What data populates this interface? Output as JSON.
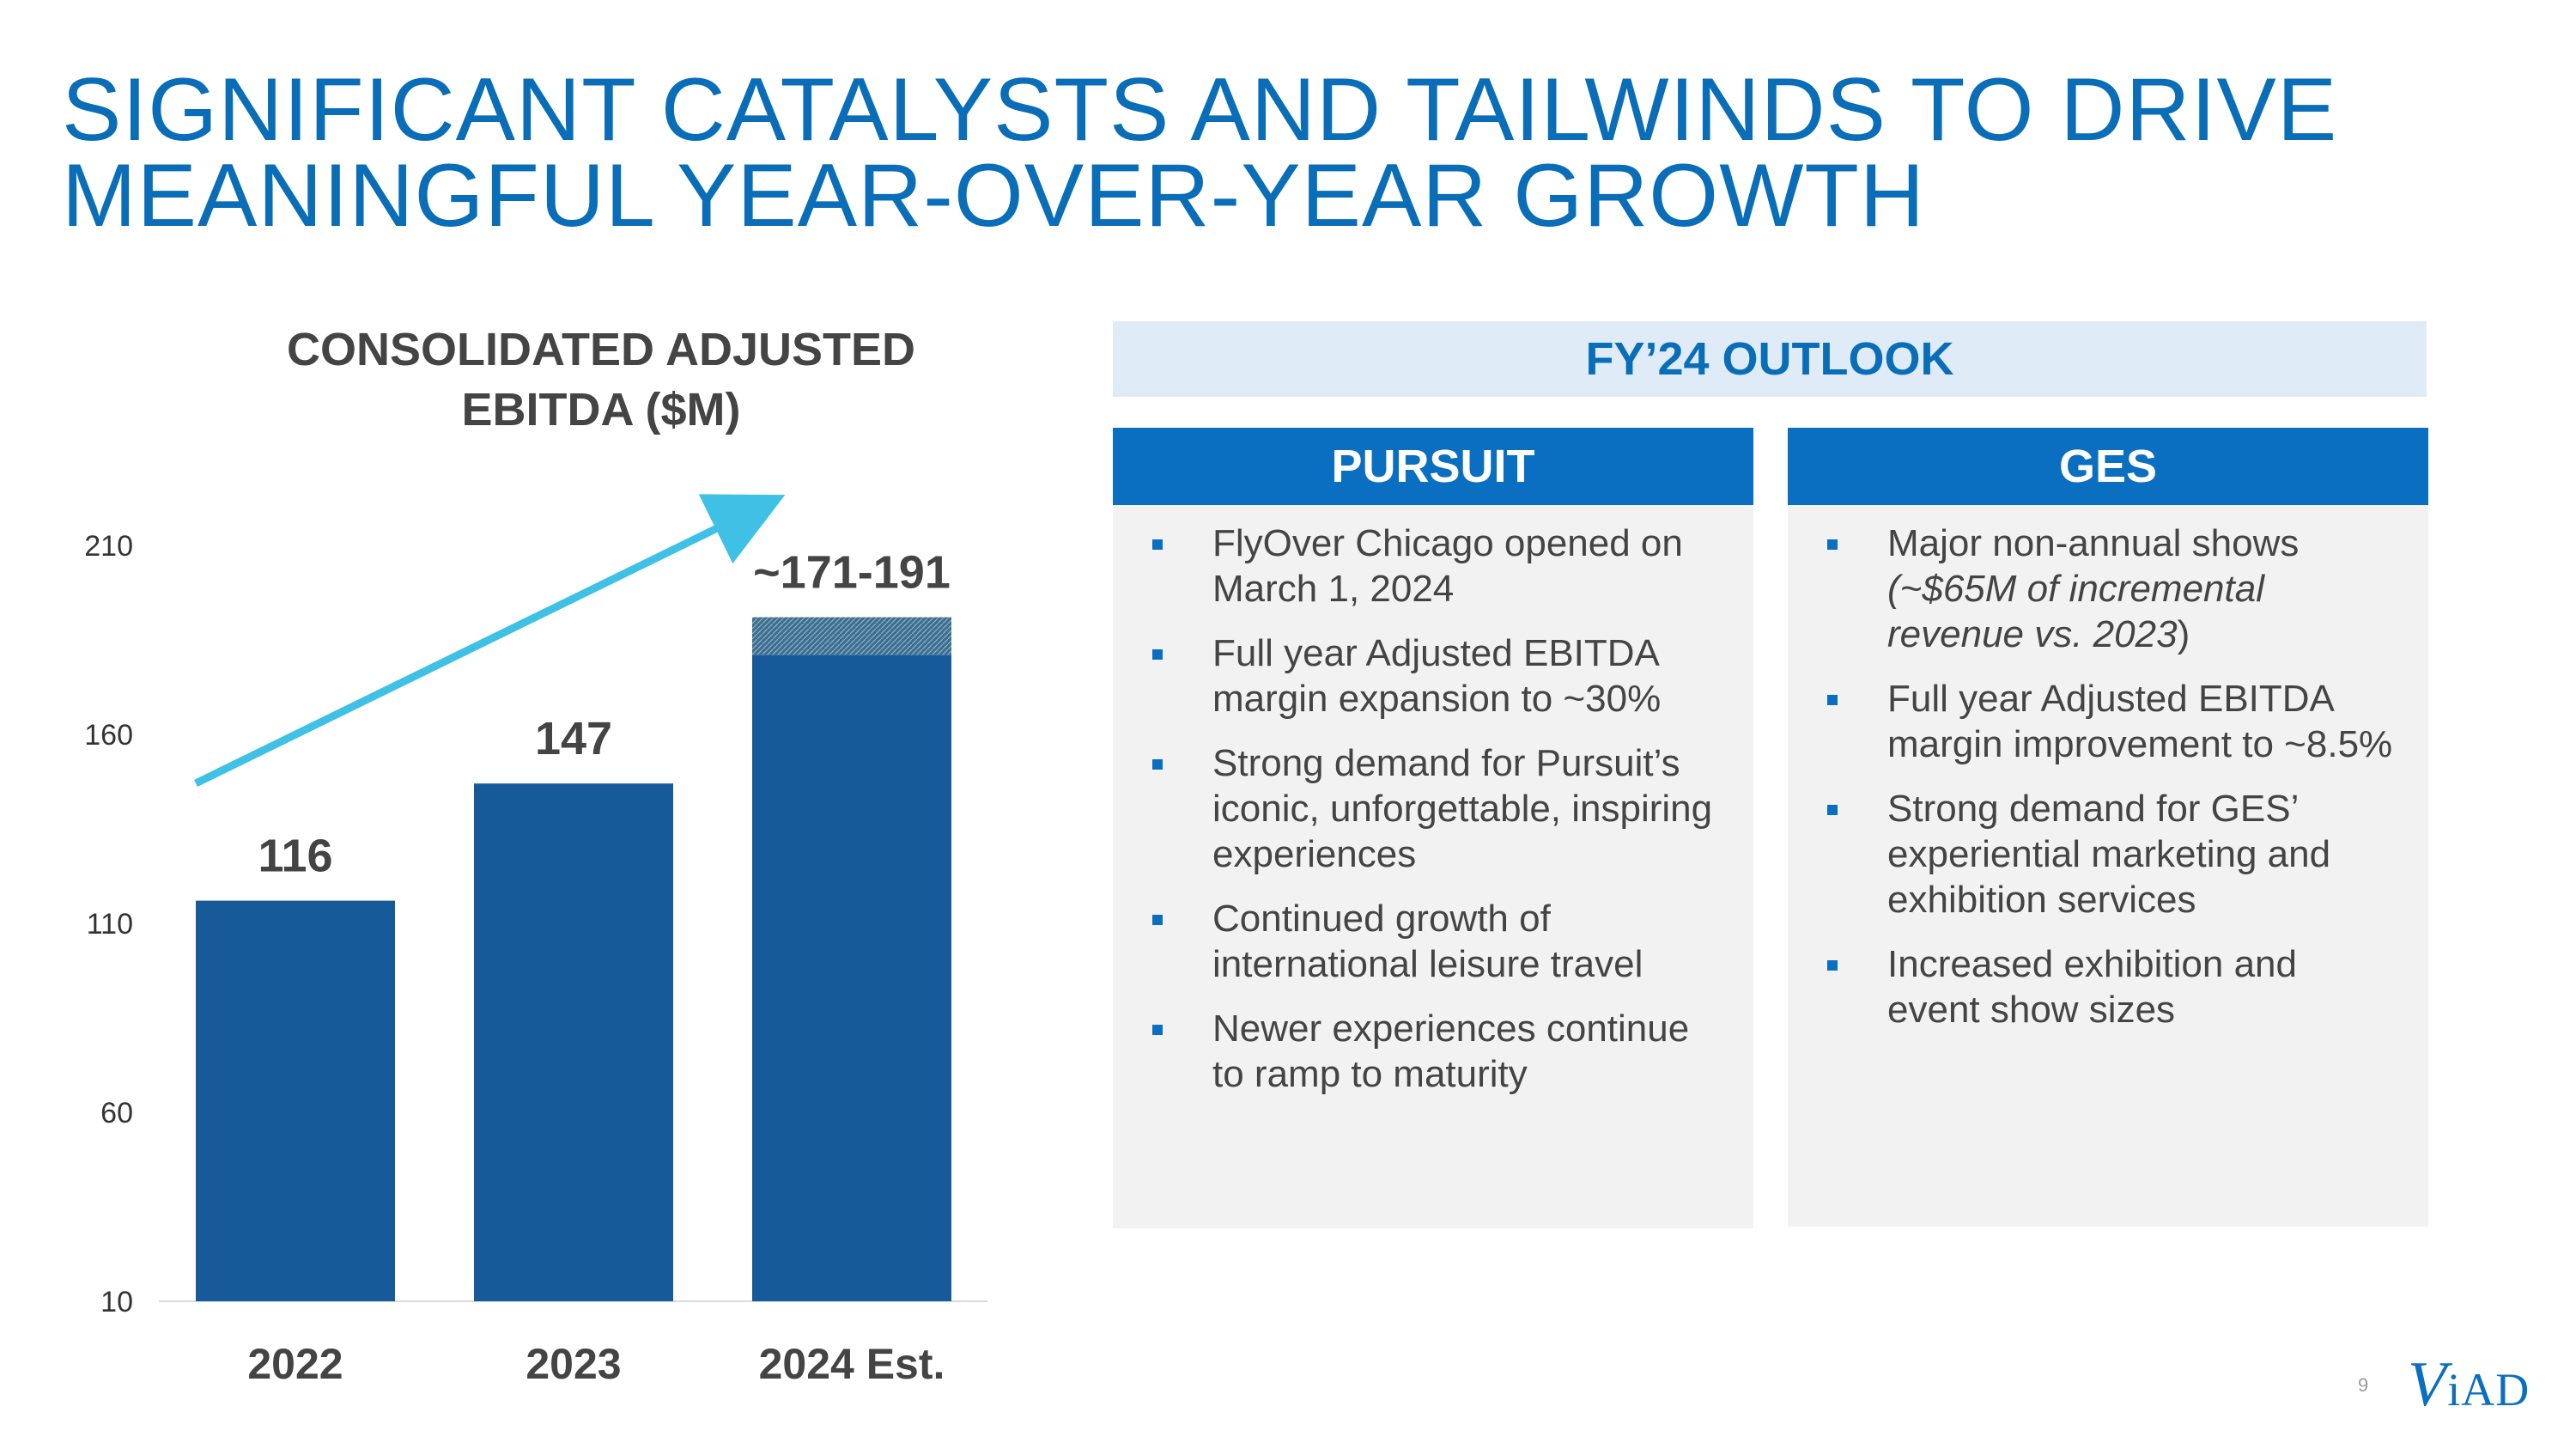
{
  "title": {
    "line1": "SIGNIFICANT CATALYSTS AND TAILWINDS TO DRIVE",
    "line2": "MEANINGFUL YEAR-OVER-YEAR GROWTH"
  },
  "chart_title": {
    "line1": "CONSOLIDATED ADJUSTED",
    "line2": "EBITDA ($M)"
  },
  "chart_data": {
    "type": "bar",
    "title": "CONSOLIDATED ADJUSTED EBITDA ($M)",
    "categories": [
      "2022",
      "2023",
      "2024 Est."
    ],
    "values": [
      116,
      147,
      191
    ],
    "range_band": {
      "category": "2024 Est.",
      "low": 171,
      "high": 191
    },
    "data_labels": [
      "116",
      "147",
      "~171-191"
    ],
    "yticks": [
      210,
      160,
      110,
      60,
      10
    ],
    "ylim": [
      10,
      210
    ],
    "xlabel": "",
    "ylabel": "",
    "grid": false,
    "trend_arrow": true,
    "colors": {
      "bar": "#175a9a",
      "band": "#3d6e8f",
      "arrow": "#3fc1e6",
      "label": "#444444"
    }
  },
  "outlook": {
    "header": "FY’24 OUTLOOK",
    "pursuit": {
      "title": "PURSUIT",
      "bullets": [
        "FlyOver Chicago opened on March 1, 2024",
        "Full year Adjusted EBITDA margin expansion to ~30%",
        "Strong demand for Pursuit’s iconic, unforgettable, inspiring experiences",
        "Continued growth of international leisure travel",
        "Newer experiences continue to ramp to maturity"
      ]
    },
    "ges": {
      "title": "GES",
      "bullet1_text": "Major non-annual shows",
      "bullet1_italic": "(~$65M of incremental revenue vs. 2023",
      "bullet1_close": ")",
      "bullets": [
        "Full year Adjusted EBITDA margin improvement to ~8.5%",
        "Strong demand for GES’ experiential marketing and exhibition services",
        "Increased exhibition and event show sizes"
      ]
    }
  },
  "footer": {
    "page_number": "9",
    "logo_v": "V",
    "logo_rest": "iAD"
  }
}
